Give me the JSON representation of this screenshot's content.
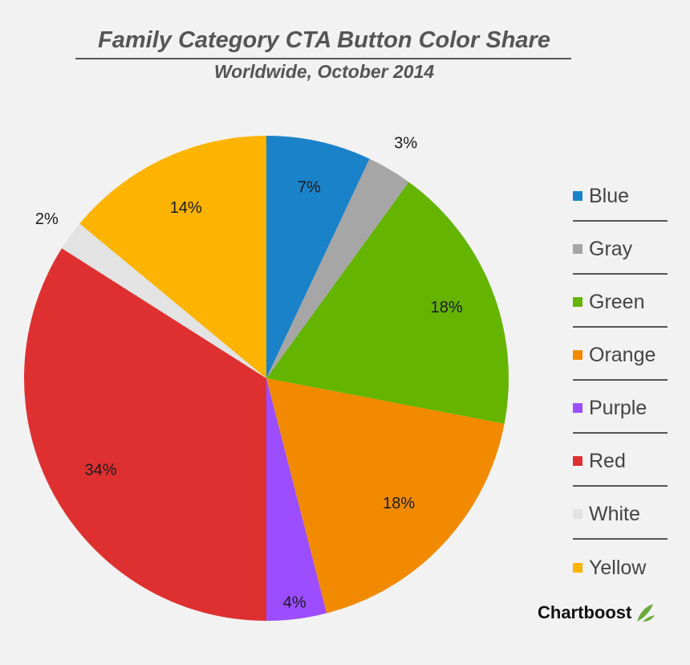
{
  "title": "Family Category CTA Button Color Share",
  "subtitle": "Worldwide, October 2014",
  "brand": {
    "name": "Chartboost",
    "icon": "leaf-icon",
    "icon_color": "#6aaa3a"
  },
  "chart_data": {
    "type": "pie",
    "title": "Family Category CTA Button Color Share",
    "subtitle": "Worldwide, October 2014",
    "legend_position": "right",
    "slices": [
      {
        "name": "Blue",
        "value": 7,
        "label": "7%",
        "color": "#1a82c8"
      },
      {
        "name": "Gray",
        "value": 3,
        "label": "3%",
        "color": "#a6a6a6"
      },
      {
        "name": "Green",
        "value": 18,
        "label": "18%",
        "color": "#64b400"
      },
      {
        "name": "Orange",
        "value": 18,
        "label": "18%",
        "color": "#f28a00"
      },
      {
        "name": "Purple",
        "value": 4,
        "label": "4%",
        "color": "#9b4dff"
      },
      {
        "name": "Red",
        "value": 34,
        "label": "34%",
        "color": "#de3030"
      },
      {
        "name": "White",
        "value": 2,
        "label": "2%",
        "color": "#e3e3e3"
      },
      {
        "name": "Yellow",
        "value": 14,
        "label": "14%",
        "color": "#fcb400"
      }
    ]
  }
}
